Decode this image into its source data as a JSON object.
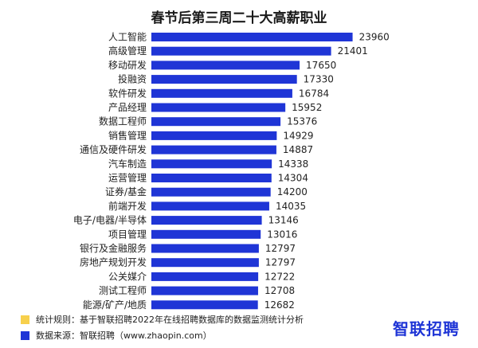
{
  "chart_data": {
    "type": "bar",
    "orientation": "horizontal",
    "title": "春节后第三周二十大高薪职业",
    "categories": [
      "人工智能",
      "高级管理",
      "移动研发",
      "投融资",
      "软件研发",
      "产品经理",
      "数据工程师",
      "销售管理",
      "通信及硬件研发",
      "汽车制造",
      "运营管理",
      "证券/基金",
      "前端开发",
      "电子/电器/半导体",
      "项目管理",
      "银行及金融服务",
      "房地产规划开发",
      "公关媒介",
      "测试工程师",
      "能源/矿产/地质"
    ],
    "values": [
      23960,
      21401,
      17650,
      17330,
      16784,
      15952,
      15376,
      14929,
      14887,
      14338,
      14304,
      14200,
      14035,
      13146,
      13016,
      12797,
      12797,
      12722,
      12708,
      12682
    ],
    "value_labels": [
      "23960",
      "21401",
      "17650",
      "17330",
      "16784",
      "15952",
      "15376",
      "14929",
      "14887",
      "14338",
      "14304",
      "14200",
      "14035",
      "13146",
      "13016",
      "12797",
      "12797",
      "12722",
      "12708",
      "12682"
    ],
    "bar_color": "#1f35d6",
    "xlim": [
      0,
      24000
    ],
    "grid": false,
    "legend": "none"
  },
  "footer": {
    "rule_label": "统计规则：基于智联招聘2022年在线招聘数据库的数据监测统计分析",
    "rule_color": "#f7d04c",
    "source_label": "数据来源：智联招聘（www.zhaopin.com）",
    "source_color": "#1f35d6"
  },
  "logo": {
    "text": "智联招聘",
    "color": "#1f35d6"
  }
}
